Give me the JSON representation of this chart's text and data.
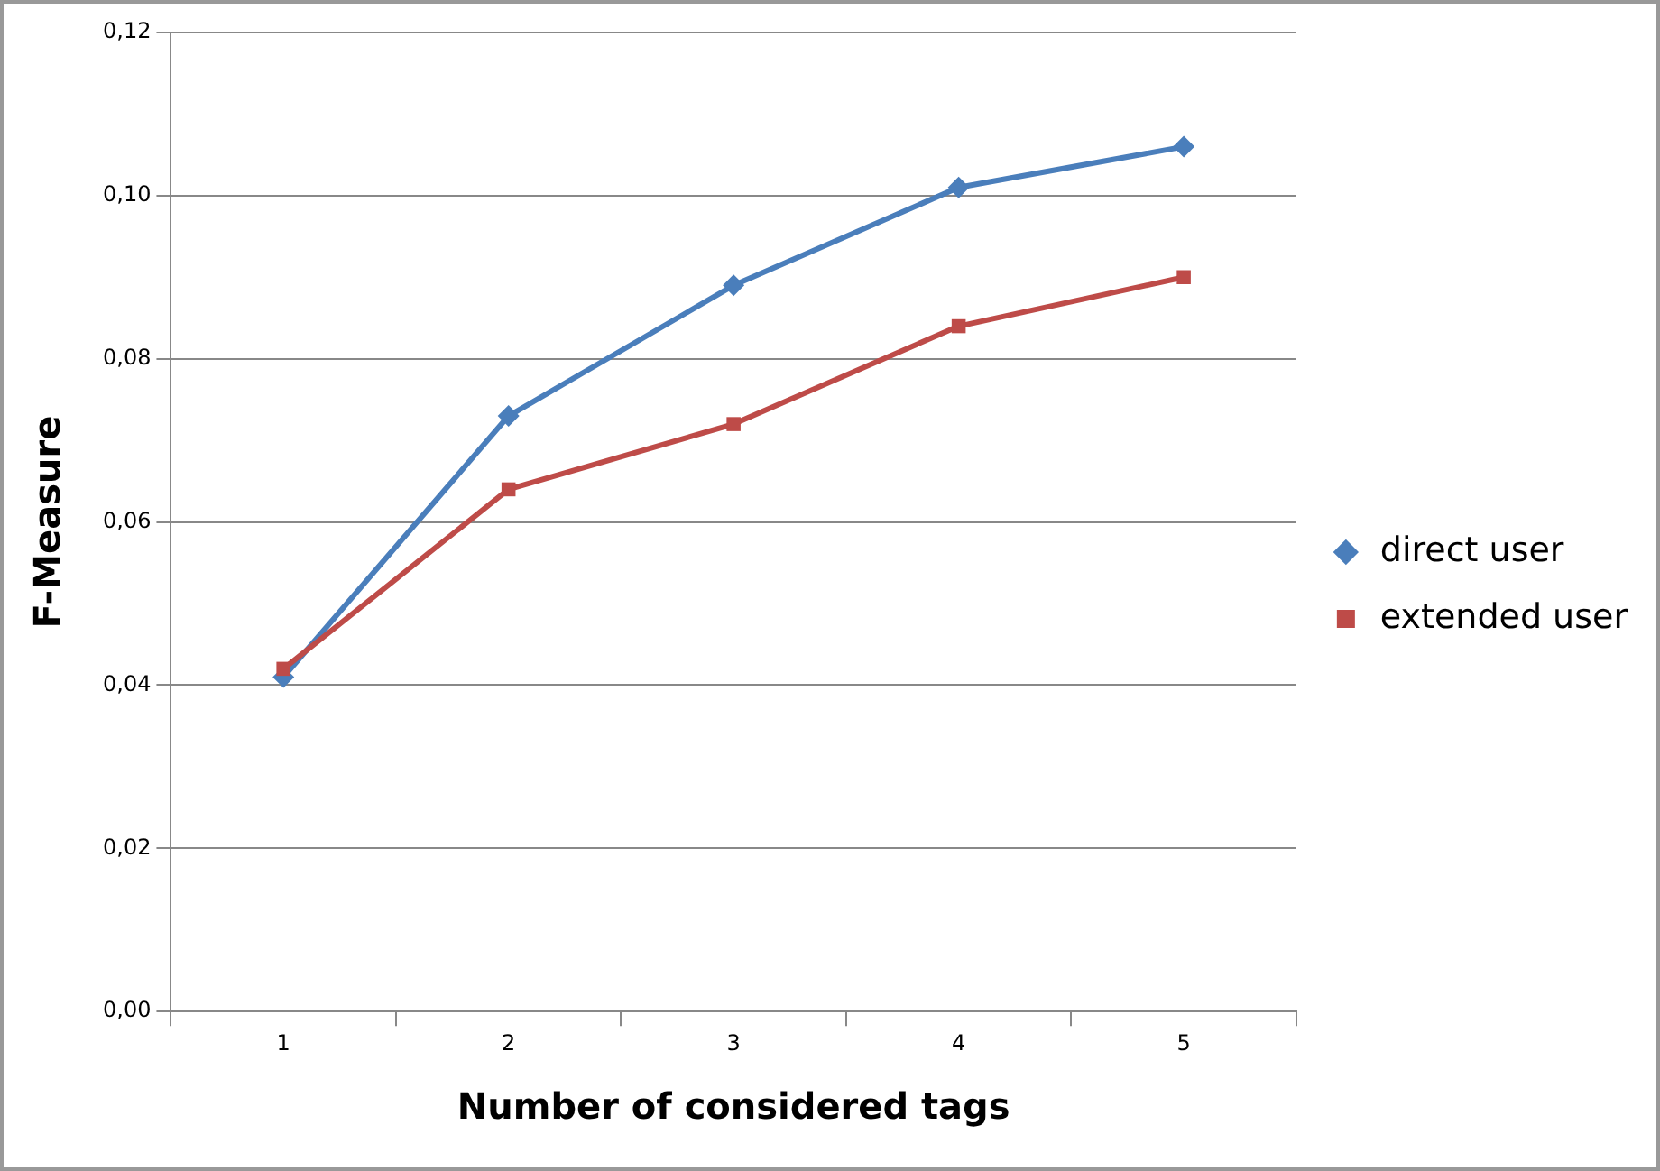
{
  "chart_data": {
    "type": "line",
    "xlabel": "Number of considered tags",
    "ylabel": "F-Measure",
    "categories": [
      "1",
      "2",
      "3",
      "4",
      "5"
    ],
    "series": [
      {
        "name": "direct user",
        "color": "#4a7ebb",
        "marker": "diamond",
        "values": [
          0.041,
          0.073,
          0.089,
          0.101,
          0.106
        ]
      },
      {
        "name": "extended user",
        "color": "#be4b48",
        "marker": "square",
        "values": [
          0.042,
          0.064,
          0.072,
          0.084,
          0.09
        ]
      }
    ],
    "ylim": [
      0,
      0.12
    ],
    "yticks": [
      {
        "value": 0,
        "label": "0,00"
      },
      {
        "value": 0.02,
        "label": "0,02"
      },
      {
        "value": 0.04,
        "label": "0,04"
      },
      {
        "value": 0.06,
        "label": "0,06"
      },
      {
        "value": 0.08,
        "label": "0,08"
      },
      {
        "value": 0.1,
        "label": "0,10"
      },
      {
        "value": 0.12,
        "label": "0,12"
      }
    ],
    "grid": "y",
    "legend": "right",
    "line_style": "solid"
  }
}
